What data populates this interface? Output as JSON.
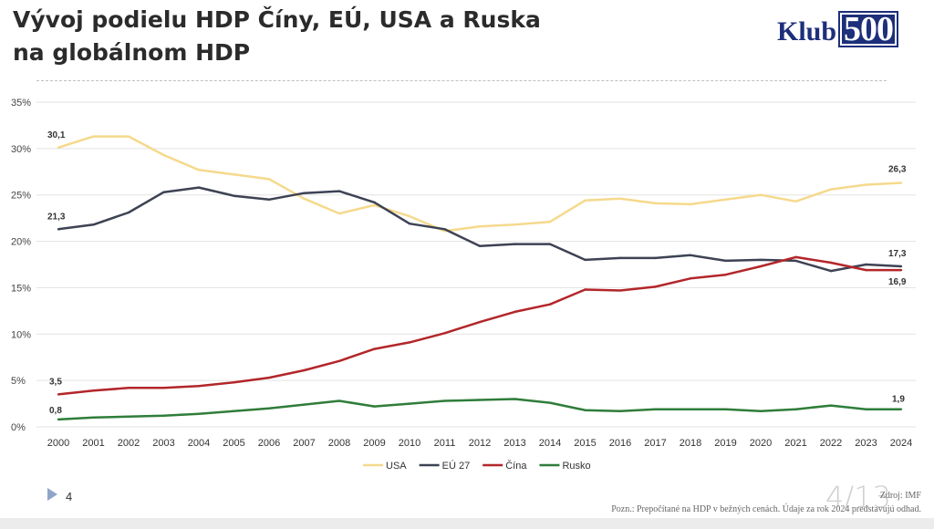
{
  "slide": {
    "title_line1": "Vývoj podielu HDP Číny, EÚ, USA a Ruska",
    "title_line2": "na globálnom HDP",
    "logo_word": "Klub",
    "logo_number": "500",
    "page_number": "4",
    "slide_counter": "4/13",
    "source": "Zdroj: IMF",
    "note": "Pozn.: Prepočítané na HDP v bežných cenách. Údaje za rok 2024 predstavujú odhad."
  },
  "chart_data": {
    "type": "line",
    "title": "Vývoj podielu HDP Číny, EÚ, USA a Ruska na globálnom HDP",
    "xlabel": "",
    "ylabel": "",
    "ylim": [
      0,
      35
    ],
    "grid": true,
    "legend_position": "bottom-center",
    "y_ticks": [
      "0%",
      "5%",
      "10%",
      "15%",
      "20%",
      "25%",
      "30%",
      "35%"
    ],
    "categories": [
      "2000",
      "2001",
      "2002",
      "2003",
      "2004",
      "2005",
      "2006",
      "2007",
      "2008",
      "2009",
      "2010",
      "2011",
      "2012",
      "2013",
      "2014",
      "2015",
      "2016",
      "2017",
      "2018",
      "2019",
      "2020",
      "2021",
      "2022",
      "2023",
      "2024"
    ],
    "series": [
      {
        "name": "USA",
        "color": "#f5d98c",
        "values": [
          30.1,
          31.3,
          31.3,
          29.3,
          27.7,
          27.2,
          26.7,
          24.6,
          23.0,
          23.9,
          22.7,
          21.1,
          21.6,
          21.8,
          22.1,
          24.4,
          24.6,
          24.1,
          24.0,
          24.5,
          25.0,
          24.3,
          25.6,
          26.1,
          26.3
        ],
        "labels": [
          {
            "index": 0,
            "text": "30,1"
          },
          {
            "index": 24,
            "text": "26,3"
          }
        ]
      },
      {
        "name": "EÚ 27",
        "color": "#3d4254",
        "values": [
          21.3,
          21.8,
          23.1,
          25.3,
          25.8,
          24.9,
          24.5,
          25.2,
          25.4,
          24.2,
          21.9,
          21.3,
          19.5,
          19.7,
          19.7,
          18.0,
          18.2,
          18.2,
          18.5,
          17.9,
          18.0,
          17.9,
          16.8,
          17.5,
          17.3
        ],
        "labels": [
          {
            "index": 0,
            "text": "21,3"
          },
          {
            "index": 24,
            "text": "17,3"
          }
        ]
      },
      {
        "name": "Čína",
        "color": "#b3262a",
        "values": [
          3.5,
          3.9,
          4.2,
          4.2,
          4.4,
          4.8,
          5.3,
          6.1,
          7.1,
          8.4,
          9.1,
          10.1,
          11.3,
          12.4,
          13.2,
          14.8,
          14.7,
          15.1,
          16.0,
          16.4,
          17.3,
          18.3,
          17.7,
          16.9,
          16.9
        ],
        "labels": [
          {
            "index": 0,
            "text": "3,5"
          },
          {
            "index": 24,
            "text": "16,9"
          }
        ]
      },
      {
        "name": "Rusko",
        "color": "#2f7d3a",
        "values": [
          0.8,
          1.0,
          1.1,
          1.2,
          1.4,
          1.7,
          2.0,
          2.4,
          2.8,
          2.2,
          2.5,
          2.8,
          2.9,
          3.0,
          2.6,
          1.8,
          1.7,
          1.9,
          1.9,
          1.9,
          1.7,
          1.9,
          2.3,
          1.9,
          1.9
        ],
        "labels": [
          {
            "index": 0,
            "text": "0,8"
          },
          {
            "index": 24,
            "text": "1,9"
          }
        ]
      }
    ]
  }
}
